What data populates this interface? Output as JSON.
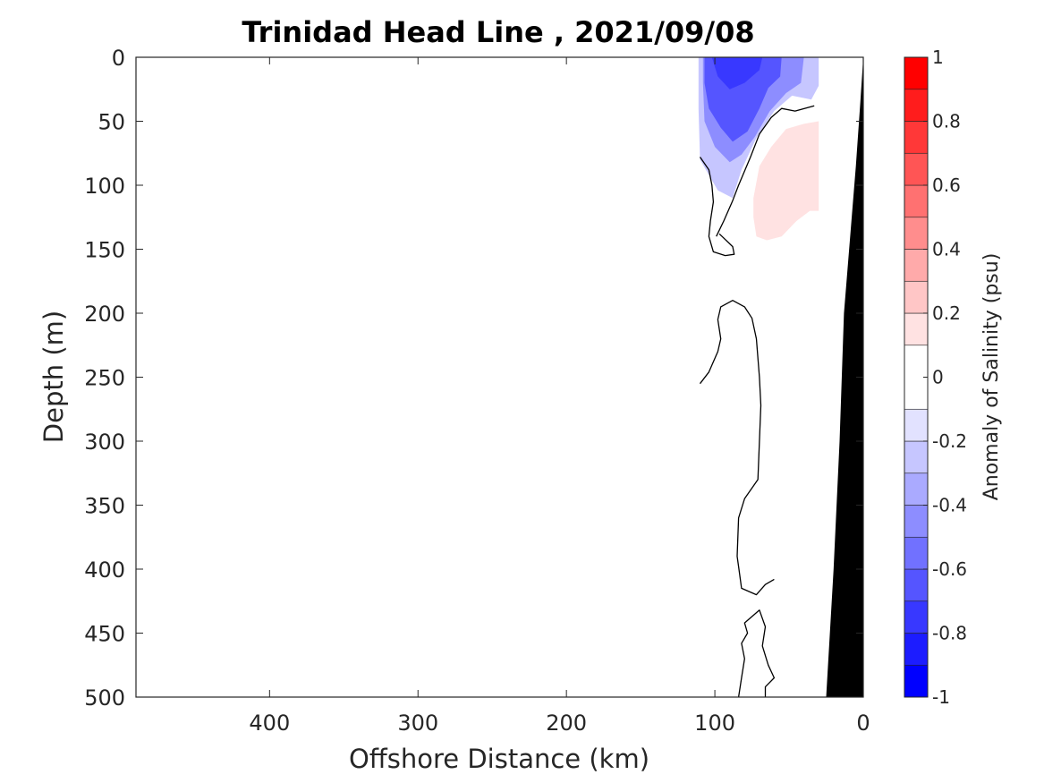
{
  "chart_data": {
    "type": "heatmap",
    "title": "Trinidad Head Line , 2021/09/08",
    "xlabel": "Offshore Distance (km)",
    "ylabel": "Depth (m)",
    "xlim": [
      490,
      0
    ],
    "ylim": [
      0,
      500
    ],
    "x_reversed": true,
    "y_reversed": true,
    "xticks": [
      400,
      300,
      200,
      100,
      0
    ],
    "yticks": [
      0,
      50,
      100,
      150,
      200,
      250,
      300,
      350,
      400,
      450,
      500
    ],
    "colorbar": {
      "label": "Anomaly of Salinity (psu)",
      "range": [
        -1,
        1
      ],
      "levels": [
        -1,
        -0.9,
        -0.8,
        -0.7,
        -0.6,
        -0.5,
        -0.4,
        -0.3,
        -0.2,
        -0.1,
        0.1,
        0.2,
        0.3,
        0.4,
        0.5,
        0.6,
        0.7,
        0.8,
        0.9,
        1
      ],
      "ticks": [
        -1,
        -0.8,
        -0.6,
        -0.4,
        -0.2,
        0,
        0.2,
        0.4,
        0.6,
        0.8,
        1
      ],
      "band_colors": [
        "#0000ff",
        "#1c1cff",
        "#3838ff",
        "#5555ff",
        "#7171ff",
        "#8d8dff",
        "#aaaaff",
        "#c6c6ff",
        "#e2e2ff",
        "#ffffff",
        "#ffe2e2",
        "#ffc6c6",
        "#ffaaaa",
        "#ff8d8d",
        "#ff7171",
        "#ff5555",
        "#ff3838",
        "#ff1c1c",
        "#ff0000"
      ]
    },
    "fill_regions": [
      {
        "name": "fresh-core-outer",
        "value": -0.2,
        "color": "#c6c6ff",
        "points": [
          [
            111,
            0
          ],
          [
            30,
            0
          ],
          [
            29,
            20
          ],
          [
            35,
            33
          ],
          [
            48,
            30
          ],
          [
            60,
            42
          ],
          [
            72,
            63
          ],
          [
            82,
            88
          ],
          [
            88,
            110
          ],
          [
            98,
            104
          ],
          [
            110,
            80
          ],
          [
            111,
            40
          ]
        ]
      },
      {
        "name": "fresh-core-mid",
        "value": -0.4,
        "color": "#8d8dff",
        "points": [
          [
            108,
            0
          ],
          [
            40,
            0
          ],
          [
            42,
            20
          ],
          [
            52,
            28
          ],
          [
            63,
            42
          ],
          [
            73,
            62
          ],
          [
            82,
            76
          ],
          [
            90,
            82
          ],
          [
            100,
            70
          ],
          [
            107,
            50
          ],
          [
            108,
            20
          ]
        ]
      },
      {
        "name": "fresh-core-inner",
        "value": -0.6,
        "color": "#5555ff",
        "points": [
          [
            107,
            0
          ],
          [
            55,
            0
          ],
          [
            56,
            15
          ],
          [
            64,
            24
          ],
          [
            70,
            40
          ],
          [
            78,
            58
          ],
          [
            88,
            66
          ],
          [
            96,
            55
          ],
          [
            104,
            40
          ],
          [
            107,
            20
          ]
        ]
      },
      {
        "name": "fresh-core-deep",
        "value": -0.8,
        "color": "#3838ff",
        "points": [
          [
            102,
            0
          ],
          [
            68,
            0
          ],
          [
            70,
            10
          ],
          [
            80,
            20
          ],
          [
            90,
            25
          ],
          [
            98,
            15
          ]
        ]
      },
      {
        "name": "saline-lens",
        "value": 0.15,
        "color": "#ffe2e2",
        "points": [
          [
            30,
            50
          ],
          [
            40,
            52
          ],
          [
            52,
            56
          ],
          [
            62,
            70
          ],
          [
            70,
            85
          ],
          [
            74,
            110
          ],
          [
            74,
            125
          ],
          [
            72,
            140
          ],
          [
            65,
            143
          ],
          [
            55,
            140
          ],
          [
            45,
            128
          ],
          [
            36,
            120
          ],
          [
            30,
            120
          ]
        ]
      }
    ],
    "zero_contours": [
      {
        "points": [
          [
            33,
            38
          ],
          [
            46,
            42
          ],
          [
            55,
            40
          ],
          [
            62,
            47
          ],
          [
            70,
            60
          ],
          [
            76,
            78
          ],
          [
            84,
            100
          ],
          [
            88,
            112
          ],
          [
            94,
            128
          ],
          [
            99,
            140
          ]
        ]
      },
      {
        "points": [
          [
            110,
            78
          ],
          [
            104,
            88
          ],
          [
            102,
            100
          ],
          [
            101,
            113
          ],
          [
            103,
            128
          ],
          [
            104,
            140
          ],
          [
            101,
            152
          ],
          [
            93,
            155
          ],
          [
            87,
            154
          ],
          [
            88,
            148
          ],
          [
            97,
            138
          ]
        ]
      },
      {
        "points": [
          [
            110,
            255
          ],
          [
            104,
            246
          ],
          [
            98,
            230
          ],
          [
            96,
            220
          ],
          [
            98,
            205
          ],
          [
            96,
            195
          ],
          [
            88,
            190
          ],
          [
            80,
            195
          ],
          [
            75,
            204
          ],
          [
            72,
            220
          ],
          [
            70,
            250
          ],
          [
            69,
            272
          ],
          [
            70,
            300
          ],
          [
            71,
            330
          ],
          [
            80,
            345
          ],
          [
            84,
            360
          ],
          [
            85,
            390
          ],
          [
            84,
            398
          ],
          [
            82,
            415
          ],
          [
            72,
            420
          ],
          [
            66,
            412
          ],
          [
            60,
            408
          ]
        ]
      },
      {
        "points": [
          [
            84,
            500
          ],
          [
            82,
            485
          ],
          [
            80,
            470
          ],
          [
            82,
            458
          ],
          [
            78,
            450
          ],
          [
            80,
            442
          ],
          [
            70,
            432
          ],
          [
            66,
            445
          ],
          [
            68,
            460
          ],
          [
            64,
            475
          ],
          [
            60,
            485
          ],
          [
            66,
            492
          ],
          [
            66,
            500
          ]
        ]
      }
    ],
    "bathymetry": {
      "color": "#000000",
      "seafloor_points": [
        [
          0,
          0
        ],
        [
          2,
          35
        ],
        [
          5,
          85
        ],
        [
          13,
          200
        ],
        [
          16,
          300
        ],
        [
          20,
          400
        ],
        [
          25,
          500
        ],
        [
          0,
          500
        ]
      ]
    },
    "data_gap": {
      "color": "#ffffff",
      "points": [
        [
          30,
          0
        ],
        [
          0,
          0
        ],
        [
          0,
          45
        ],
        [
          30,
          45
        ]
      ]
    }
  }
}
